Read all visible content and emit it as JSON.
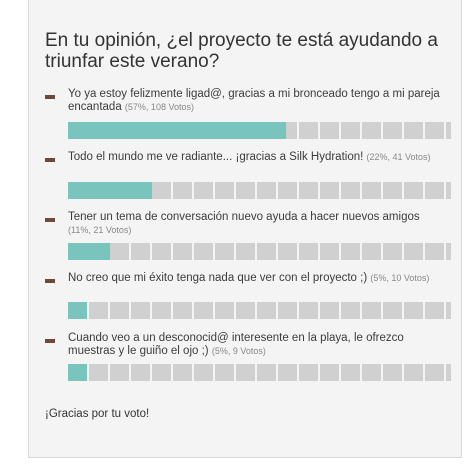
{
  "poll": {
    "question": "En tu opinión, ¿el proyecto te está ayudando a triunfar este verano?",
    "options": [
      {
        "text": "Yo ya estoy felizmente ligad@, gracias a mi bronceado tengo a mi pareja encantada",
        "votes": "(57%, 108 Votos)",
        "percent": 57
      },
      {
        "text": "Todo el mundo me ve radiante... ¡gracias a Silk Hydration!",
        "votes": "(22%, 41 Votos)",
        "percent": 22
      },
      {
        "text": "Tener un tema de conversación nuevo ayuda a hacer nuevos amigos",
        "votes": "(11%, 21 Votos)",
        "percent": 11
      },
      {
        "text": "No creo que mi éxito tenga nada que ver con el proyecto ;)",
        "votes": "(5%, 10 Votos)",
        "percent": 5
      },
      {
        "text": "Cuando veo a un desconocid@ interesente en la playa, le ofrezco muestras y le guiño el ojo ;)",
        "votes": "(5%, 9 Votos)",
        "percent": 5
      }
    ],
    "thanks": "¡Gracias por tu voto!",
    "colors": {
      "fill": "#7ac4be",
      "track": "#d0d0d0",
      "bullet": "#6b4a3a"
    }
  }
}
